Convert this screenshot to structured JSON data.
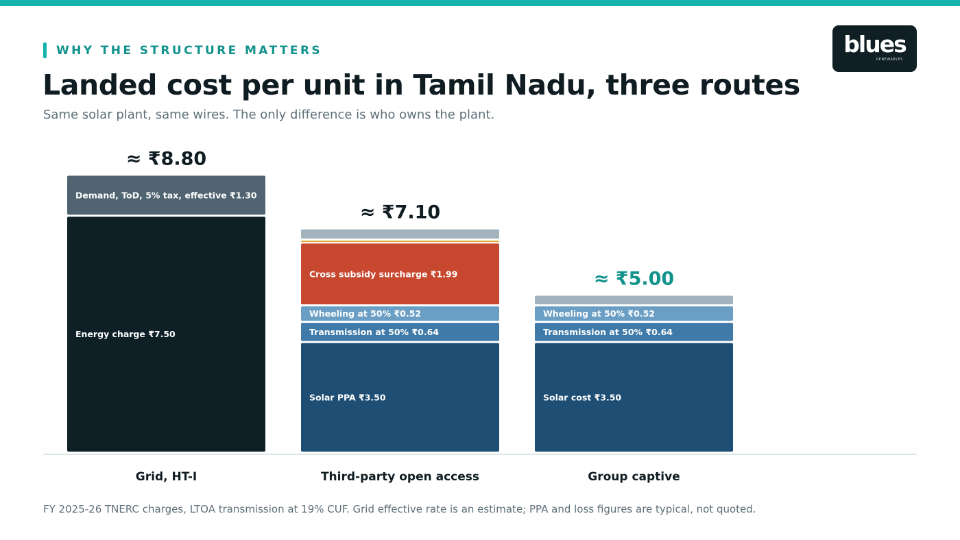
{
  "header": {
    "eyebrow": "WHY THE STRUCTURE MATTERS",
    "title": "Landed cost per unit in Tamil Nadu, three routes",
    "subtitle": "Same solar plant, same wires. The only difference is who owns the plant."
  },
  "logo": {
    "word": "blues",
    "tagline": "RENEWABLES"
  },
  "footnote": "FY 2025-26 TNERC charges, LTOA transmission at 19% CUF. Grid effective rate is an estimate; PPA and loss figures are typical, not quoted.",
  "colors": {
    "accent": "#17b3ad",
    "energy": "#0e1f26",
    "demand": "#4f6470",
    "css": "#c7472f",
    "css_line": "#e0a43a",
    "wheeling": "#6a9ec4",
    "transmission": "#3f7aa8",
    "solar": "#1e4e73",
    "losses": "#a3b3bd",
    "highlight_total": "#12928c"
  },
  "chart_data": {
    "type": "bar",
    "stacked": true,
    "unit": "₹ per unit",
    "categories": [
      "Grid, HT-I",
      "Third-party open access",
      "Group captive"
    ],
    "totals": [
      {
        "label": "≈ ₹8.80",
        "value": 8.8
      },
      {
        "label": "≈ ₹7.10",
        "value": 7.1
      },
      {
        "label": "≈ ₹5.00",
        "value": 5.0,
        "highlight": true
      }
    ],
    "bars": [
      {
        "category": "Grid, HT-I",
        "segments": [
          {
            "label": "Energy charge ₹7.50",
            "value": 7.5,
            "color": "energy"
          },
          {
            "label": "Demand, ToD, 5% tax, effective ₹1.30",
            "value": 1.3,
            "color": "demand"
          }
        ]
      },
      {
        "category": "Third-party open access",
        "segments": [
          {
            "label": "Solar PPA ₹3.50",
            "value": 3.5,
            "color": "solar"
          },
          {
            "label": "Transmission at 50% ₹0.64",
            "value": 0.64,
            "color": "transmission"
          },
          {
            "label": "Wheeling at 50% ₹0.52",
            "value": 0.52,
            "color": "wheeling"
          },
          {
            "label": "Cross subsidy surcharge ₹1.99",
            "value": 1.99,
            "color": "css"
          },
          {
            "label": "",
            "value": 0.09,
            "color": "css_line"
          },
          {
            "label": "",
            "value": 0.36,
            "color": "losses"
          }
        ]
      },
      {
        "category": "Group captive",
        "segments": [
          {
            "label": "Solar cost ₹3.50",
            "value": 3.5,
            "color": "solar"
          },
          {
            "label": "Transmission at 50% ₹0.64",
            "value": 0.64,
            "color": "transmission"
          },
          {
            "label": "Wheeling at 50% ₹0.52",
            "value": 0.52,
            "color": "wheeling"
          },
          {
            "label": "",
            "value": 0.34,
            "color": "losses"
          }
        ]
      }
    ]
  }
}
